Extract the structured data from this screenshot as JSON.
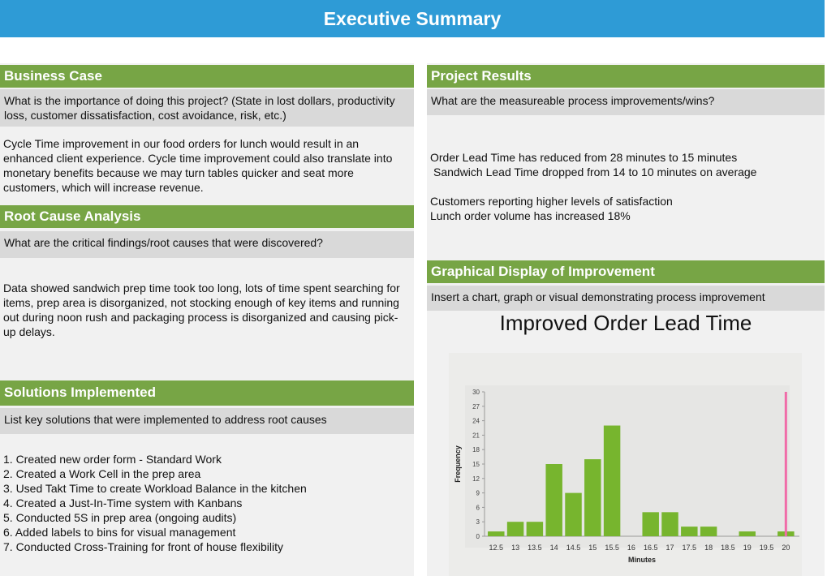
{
  "header": {
    "title": "Executive Summary"
  },
  "business_case": {
    "title": "Business Case",
    "question": "What is the importance of doing this project? (State in lost dollars, productivity loss, customer dissatisfaction, cost avoidance, risk, etc.)",
    "body": "Cycle Time improvement in our food orders for lunch would result in an enhanced client experience. Cycle time improvement could also translate into monetary benefits because we may turn tables quicker and seat more customers, which will increase revenue."
  },
  "root_cause": {
    "title": "Root Cause Analysis",
    "question": "What are the critical findings/root causes that were discovered?",
    "body": "Data showed sandwich prep time took too long, lots of time spent searching for items, prep area is disorganized, not stocking enough of key items and running out during noon rush and packaging process is disorganized and causing pick-up delays."
  },
  "solutions": {
    "title": "Solutions Implemented",
    "question": "List key solutions that were implemented to address root causes",
    "items": [
      "1. Created new order form - Standard Work",
      "2. Created a Work Cell in the prep area",
      "3. Used Takt Time to create Workload Balance in the kitchen",
      "4. Created a Just-In-Time system with Kanbans",
      "5. Conducted 5S in prep area (ongoing audits)",
      "6. Added labels to bins for visual management",
      "7. Conducted Cross-Training for front of house flexibility"
    ]
  },
  "project_results": {
    "title": "Project Results",
    "question": "What are the measureable process improvements/wins?",
    "lines": [
      "Order Lead Time has reduced from 28 minutes to 15 minutes",
      "Sandwich Lead Time dropped from 14 to 10 minutes on average",
      "Customers reporting higher levels of satisfaction",
      "Lunch order volume has increased 18%"
    ]
  },
  "graphical": {
    "title": "Graphical Display of Improvement",
    "question": "Insert a chart, graph or visual demonstrating process improvement"
  },
  "chart_data": {
    "type": "histogram",
    "title": "Improved Order Lead Time",
    "x_label": "Minutes",
    "y_label": "Frequency",
    "x": [
      12.5,
      13,
      13.5,
      14,
      14.5,
      15,
      15.5,
      16,
      16.5,
      17,
      17.5,
      18,
      18.5,
      19,
      19.5,
      20
    ],
    "values": [
      1,
      3,
      3,
      15,
      9,
      16,
      23,
      0,
      5,
      5,
      2,
      2,
      0,
      1,
      0,
      1
    ],
    "color": "#77b52e",
    "xlim": [
      12.2,
      20.35
    ],
    "xticks": [
      12.5,
      13,
      13.5,
      14,
      14.5,
      15,
      15.5,
      16,
      16.5,
      17,
      17.5,
      18,
      18.5,
      19,
      19.5,
      20
    ],
    "ylim": [
      0,
      30
    ],
    "yticks": [
      0,
      3,
      6,
      9,
      12,
      15,
      18,
      21,
      24,
      27,
      30
    ],
    "reference_line": {
      "x": 20,
      "color": "#f06ba8"
    }
  }
}
